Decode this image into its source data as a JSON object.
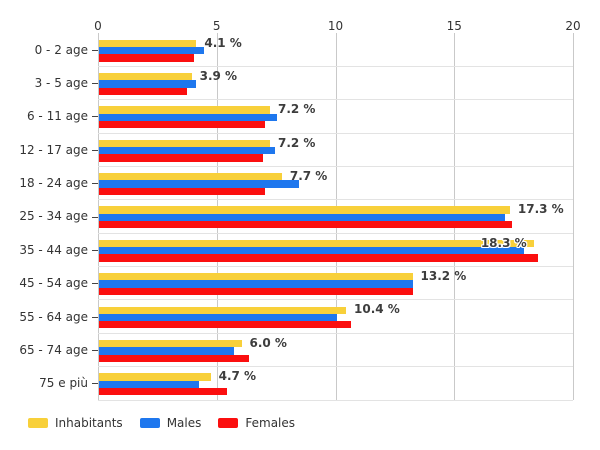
{
  "chart_data": {
    "type": "bar",
    "orientation": "horizontal",
    "title": "",
    "categories": [
      "0 - 2 age",
      "3 - 5 age",
      "6 - 11 age",
      "12 - 17 age",
      "18 - 24 age",
      "25 - 34 age",
      "35 - 44 age",
      "45 - 54 age",
      "55 - 64 age",
      "65 - 74 age",
      "75 e più"
    ],
    "series": [
      {
        "name": "Inhabitants",
        "color": "#F8D03A",
        "values": [
          4.1,
          3.9,
          7.2,
          7.2,
          7.7,
          17.3,
          18.3,
          13.2,
          10.4,
          6.0,
          4.7
        ]
      },
      {
        "name": "Males",
        "color": "#1E77EE",
        "values": [
          4.4,
          4.1,
          7.5,
          7.4,
          8.4,
          17.1,
          17.9,
          13.2,
          10.0,
          5.7,
          4.2
        ]
      },
      {
        "name": "Females",
        "color": "#FB0F0F",
        "values": [
          4.0,
          3.7,
          7.0,
          6.9,
          7.0,
          17.4,
          18.5,
          13.2,
          10.6,
          6.3,
          5.4
        ]
      }
    ],
    "data_labels": [
      "4.1 %",
      "3.9 %",
      "7.2 %",
      "7.2 %",
      "7.7 %",
      "17.3 %",
      "18.3 %",
      "13.2 %",
      "10.4 %",
      "6.0 %",
      "4.7 %"
    ],
    "x_ticks": [
      0,
      5,
      10,
      15,
      20
    ],
    "x_tick_labels": [
      "0",
      "5",
      "10",
      "15",
      "20"
    ],
    "xlim": [
      0,
      20
    ],
    "grid": true,
    "legend_position": "bottom-left"
  },
  "legend": {
    "items": [
      {
        "label": "Inhabitants",
        "color": "#F8D03A"
      },
      {
        "label": "Males",
        "color": "#1E77EE"
      },
      {
        "label": "Females",
        "color": "#FB0F0F"
      }
    ]
  }
}
